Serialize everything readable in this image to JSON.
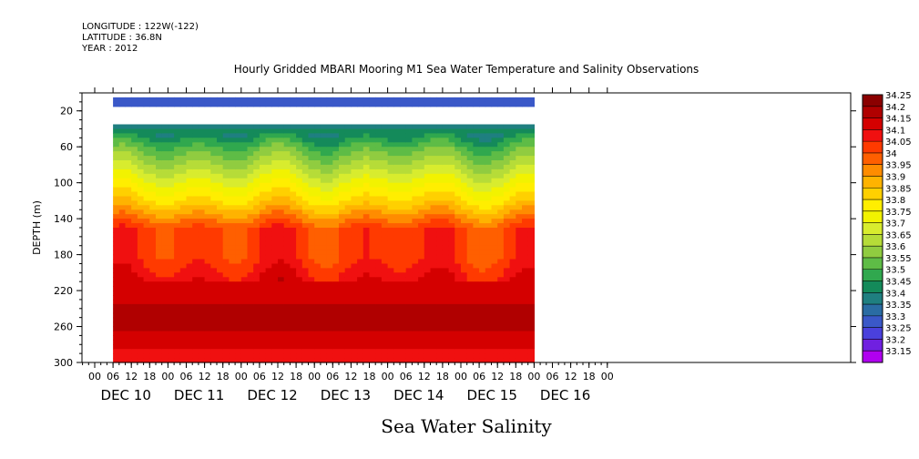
{
  "header": {
    "longitude": "LONGITUDE : 122W(-122)",
    "latitude": "LATITUDE : 36.8N",
    "year": "YEAR : 2012"
  },
  "chart_data": {
    "type": "heatmap",
    "title": "Hourly Gridded MBARI Mooring M1 Sea Water Temperature and Salinity Observations",
    "xlabel": "Sea Water Salinity",
    "ylabel": "DEPTH (m)",
    "ylim": [
      300,
      0
    ],
    "y_ticks": [
      20,
      60,
      100,
      140,
      180,
      220,
      260,
      300
    ],
    "x_hour_ticks": [
      "00",
      "06",
      "12",
      "18",
      "00",
      "06",
      "12",
      "18",
      "00",
      "06",
      "12",
      "18",
      "00",
      "06",
      "12",
      "18",
      "00",
      "06",
      "12",
      "18",
      "00",
      "06",
      "12",
      "18",
      "00",
      "06",
      "12",
      "18",
      "00"
    ],
    "x_day_labels": [
      "DEC 10",
      "DEC 11",
      "DEC 12",
      "DEC 13",
      "DEC 14",
      "DEC 15",
      "DEC 16"
    ],
    "data_start": "DEC 10 06",
    "data_end": "DEC 16 23",
    "colorbar": {
      "levels": [
        "34.25",
        "34.2",
        "34.15",
        "34.1",
        "34.05",
        "34",
        "33.95",
        "33.9",
        "33.85",
        "33.8",
        "33.75",
        "33.7",
        "33.65",
        "33.6",
        "33.55",
        "33.5",
        "33.45",
        "33.4",
        "33.35",
        "33.3",
        "33.25",
        "33.2",
        "33.15"
      ],
      "colors": [
        "#8b0000",
        "#b00000",
        "#d40000",
        "#f01010",
        "#ff3a00",
        "#ff5f00",
        "#ff8c00",
        "#ffb300",
        "#ffd000",
        "#ffee00",
        "#f2f200",
        "#d8ec2e",
        "#b6dc38",
        "#90cc40",
        "#5ebc46",
        "#30a84e",
        "#148a5a",
        "#1f7f80",
        "#2a6ca3",
        "#3a58c8",
        "#4a40dc",
        "#7020e0",
        "#b000f0"
      ]
    },
    "depth_profile": [
      {
        "depth": 10,
        "value": 33.3
      },
      {
        "depth": 45,
        "value": 33.45
      },
      {
        "depth": 60,
        "value": 33.55
      },
      {
        "depth": 80,
        "value": 33.65
      },
      {
        "depth": 100,
        "value": 33.75
      },
      {
        "depth": 120,
        "value": 33.85
      },
      {
        "depth": 135,
        "value": 33.95
      },
      {
        "depth": 150,
        "value": 34.05
      },
      {
        "depth": 180,
        "value": 34.05
      },
      {
        "depth": 200,
        "value": 34.1
      },
      {
        "depth": 220,
        "value": 34.15
      },
      {
        "depth": 240,
        "value": 34.2
      },
      {
        "depth": 255,
        "value": 34.2
      },
      {
        "depth": 270,
        "value": 34.15
      },
      {
        "depth": 290,
        "value": 34.1
      },
      {
        "depth": 300,
        "value": 34.1
      }
    ],
    "missing_depth_range": [
      13,
      35
    ]
  }
}
